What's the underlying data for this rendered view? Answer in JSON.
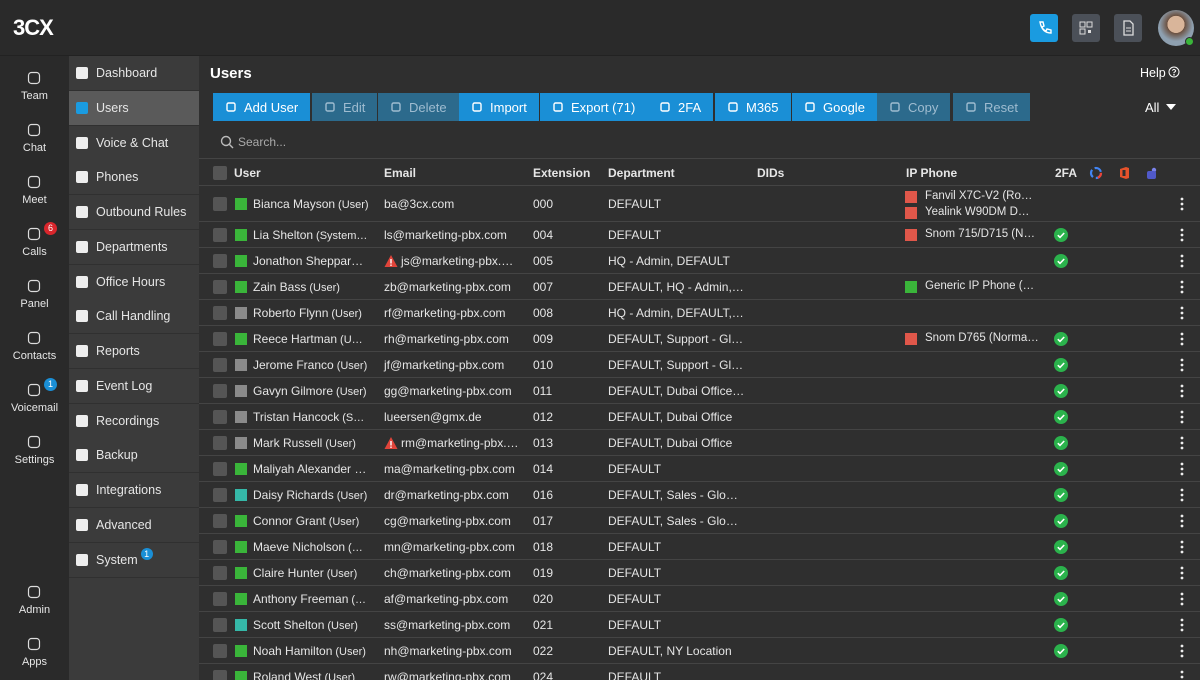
{
  "topbar": {
    "logo": "3CX"
  },
  "rail": [
    {
      "label": "Team"
    },
    {
      "label": "Chat"
    },
    {
      "label": "Meet"
    },
    {
      "label": "Calls",
      "badge": 6,
      "badge_color": "#d9262c"
    },
    {
      "label": "Panel"
    },
    {
      "label": "Contacts"
    },
    {
      "label": "Voicemail",
      "badge": 1,
      "badge_color": "#1a8fd6"
    },
    {
      "label": "Settings"
    }
  ],
  "rail_bottom": [
    {
      "label": "Admin"
    },
    {
      "label": "Apps"
    }
  ],
  "menu": [
    {
      "label": "Dashboard"
    },
    {
      "label": "Users",
      "selected": true
    },
    {
      "label": "Voice & Chat"
    },
    {
      "label": "Phones"
    },
    {
      "label": "Outbound Rules"
    },
    {
      "label": "Departments"
    },
    {
      "label": "Office Hours"
    },
    {
      "label": "Call Handling"
    },
    {
      "label": "Reports"
    },
    {
      "label": "Event Log"
    },
    {
      "label": "Recordings"
    },
    {
      "label": "Backup"
    },
    {
      "label": "Integrations"
    },
    {
      "label": "Advanced"
    },
    {
      "label": "System",
      "badge": 1
    }
  ],
  "page": {
    "title": "Users",
    "help": "Help"
  },
  "toolbar": [
    {
      "label": "Add User",
      "enabled": true
    },
    {
      "label": "Edit",
      "enabled": false
    },
    {
      "label": "Delete",
      "enabled": false
    },
    {
      "label": "Import",
      "enabled": true
    },
    {
      "label": "Export (71)",
      "enabled": true
    },
    {
      "label": "2FA",
      "enabled": true
    },
    {
      "label": "M365",
      "enabled": true
    },
    {
      "label": "Google",
      "enabled": true
    },
    {
      "label": "Copy",
      "enabled": false
    },
    {
      "label": "Reset",
      "enabled": false
    }
  ],
  "filter": "All",
  "search_placeholder": "Search...",
  "table": {
    "columns": [
      "User",
      "Email",
      "Extension",
      "Department",
      "DIDs",
      "IP Phone",
      "2FA"
    ],
    "rows": [
      {
        "name": "Bianca Mayson",
        "role": "(User)",
        "status": "#3ab53a",
        "email": "ba@3cx.com",
        "extension": "000",
        "department": "DEFAULT",
        "phones": [
          {
            "name": "Fanvil X7C-V2 (Ro…",
            "color": "#e0574a"
          },
          {
            "name": "Yealink W90DM D…",
            "color": "#e0574a"
          }
        ],
        "twofa": false
      },
      {
        "name": "Lia Shelton",
        "role": "(System…",
        "status": "#3ab53a",
        "email": "ls@marketing-pbx.com",
        "extension": "004",
        "department": "DEFAULT",
        "phones": [
          {
            "name": "Snom 715/D715 (N…",
            "color": "#e0574a"
          }
        ],
        "twofa": true
      },
      {
        "name": "Jonathon Sheppar…",
        "status": "#3ab53a",
        "email": "js@marketing-pbx.…",
        "warning": true,
        "extension": "005",
        "department": "HQ - Admin, DEFAULT",
        "twofa": true
      },
      {
        "name": "Zain Bass",
        "role": "(User)",
        "status": "#3ab53a",
        "email": "zb@marketing-pbx.com",
        "extension": "007",
        "department": "DEFAULT, HQ - Admin,…",
        "phones": [
          {
            "name": "Generic IP Phone (…",
            "color": "#3ab53a"
          }
        ],
        "twofa": false
      },
      {
        "name": "Roberto Flynn",
        "role": "(User)",
        "status": "#8a8a8a",
        "email": "rf@marketing-pbx.com",
        "extension": "008",
        "department": "HQ - Admin, DEFAULT,…",
        "twofa": false
      },
      {
        "name": "Reece Hartman",
        "role": "(U…",
        "status": "#3ab53a",
        "email": "rh@marketing-pbx.com",
        "extension": "009",
        "department": "DEFAULT, Support - Gl…",
        "phones": [
          {
            "name": "Snom D765 (Norma…",
            "color": "#e0574a"
          }
        ],
        "twofa": true
      },
      {
        "name": "Jerome Franco",
        "role": "(User)",
        "status": "#8a8a8a",
        "email": "jf@marketing-pbx.com",
        "extension": "010",
        "department": "DEFAULT, Support - Gl…",
        "twofa": true
      },
      {
        "name": "Gavyn Gilmore",
        "role": "(User)",
        "status": "#8a8a8a",
        "email": "gg@marketing-pbx.com",
        "extension": "011",
        "department": "DEFAULT, Dubai Office…",
        "twofa": true
      },
      {
        "name": "Tristan Hancock",
        "role": "(S…",
        "status": "#8a8a8a",
        "email": "lueersen@gmx.de",
        "extension": "012",
        "department": "DEFAULT, Dubai Office",
        "twofa": true
      },
      {
        "name": "Mark Russell",
        "role": "(User)",
        "status": "#8a8a8a",
        "email": "rm@marketing-pbx.…",
        "warning": true,
        "extension": "013",
        "department": "DEFAULT, Dubai Office",
        "twofa": true
      },
      {
        "name": "Maliyah Alexander …",
        "status": "#3ab53a",
        "email": "ma@marketing-pbx.com",
        "extension": "014",
        "department": "DEFAULT",
        "twofa": true
      },
      {
        "name": "Daisy Richards",
        "role": "(User)",
        "status": "#35b8a8",
        "email": "dr@marketing-pbx.com",
        "extension": "016",
        "department": "DEFAULT, Sales - Glo…",
        "twofa": true
      },
      {
        "name": "Connor Grant",
        "role": "(User)",
        "status": "#3ab53a",
        "email": "cg@marketing-pbx.com",
        "extension": "017",
        "department": "DEFAULT, Sales - Glo…",
        "twofa": true
      },
      {
        "name": "Maeve Nicholson",
        "role": "(…",
        "status": "#3ab53a",
        "email": "mn@marketing-pbx.com",
        "extension": "018",
        "department": "DEFAULT",
        "twofa": true
      },
      {
        "name": "Claire Hunter",
        "role": "(User)",
        "status": "#3ab53a",
        "email": "ch@marketing-pbx.com",
        "extension": "019",
        "department": "DEFAULT",
        "twofa": true
      },
      {
        "name": "Anthony Freeman",
        "role": "(…",
        "status": "#3ab53a",
        "email": "af@marketing-pbx.com",
        "extension": "020",
        "department": "DEFAULT",
        "twofa": true
      },
      {
        "name": "Scott Shelton",
        "role": "(User)",
        "status": "#35b8a8",
        "email": "ss@marketing-pbx.com",
        "extension": "021",
        "department": "DEFAULT",
        "twofa": true
      },
      {
        "name": "Noah Hamilton",
        "role": "(User)",
        "status": "#3ab53a",
        "email": "nh@marketing-pbx.com",
        "extension": "022",
        "department": "DEFAULT, NY Location",
        "twofa": true
      },
      {
        "name": "Roland West",
        "role": "(User)",
        "status": "#3ab53a",
        "email": "rw@marketing-pbx.com",
        "extension": "024",
        "department": "DEFAULT",
        "twofa": false
      }
    ]
  }
}
